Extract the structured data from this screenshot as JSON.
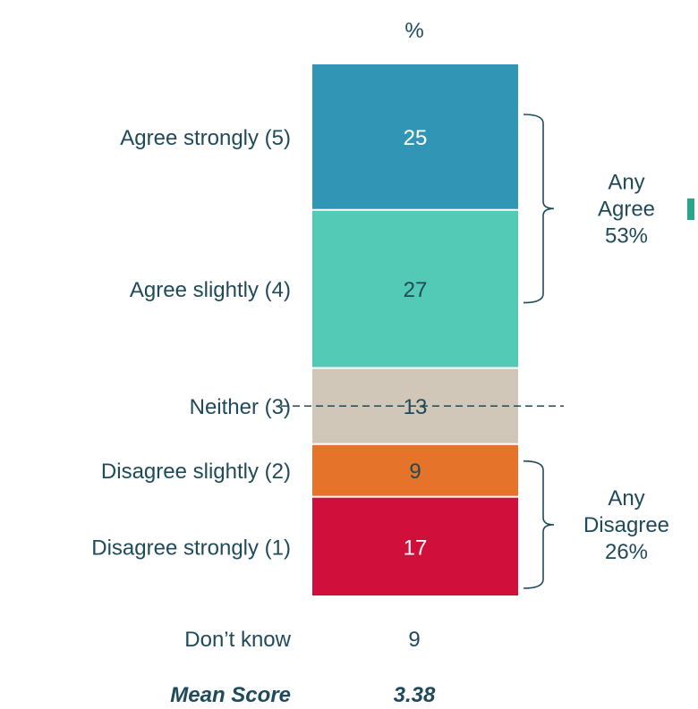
{
  "chart_data": {
    "type": "bar",
    "layout": "single stacked column",
    "unit_header": "%",
    "categories": [
      "Agree strongly (5)",
      "Agree slightly (4)",
      "Neither (3)",
      "Disagree slightly (2)",
      "Disagree strongly (1)"
    ],
    "values": [
      25,
      27,
      13,
      9,
      17
    ],
    "colors": [
      "#3196b5",
      "#52cab5",
      "#d0c7b9",
      "#e5742a",
      "#d0103a"
    ],
    "value_label_color": [
      "#ffffff",
      "#1f4a5a",
      "#1f4a5a",
      "#1f4a5a",
      "#ffffff"
    ],
    "groups": [
      {
        "label_lines": [
          "Any",
          "Agree",
          "53%"
        ],
        "covers": [
          0,
          1
        ]
      },
      {
        "label_lines": [
          "Any",
          "Disagree",
          "26%"
        ],
        "covers": [
          3,
          4
        ]
      }
    ],
    "midpoint_line": {
      "style": "dashed",
      "at_category": 2
    },
    "dont_know": {
      "label": "Don’t know",
      "value": "9"
    },
    "mean_score": {
      "label": "Mean Score",
      "value": "3.38"
    }
  },
  "colors": {
    "text": "#1f4a5a",
    "mean_text": "#1f3f55",
    "bracket": "#1f4a5a",
    "side_marker": "#2aa58a"
  }
}
